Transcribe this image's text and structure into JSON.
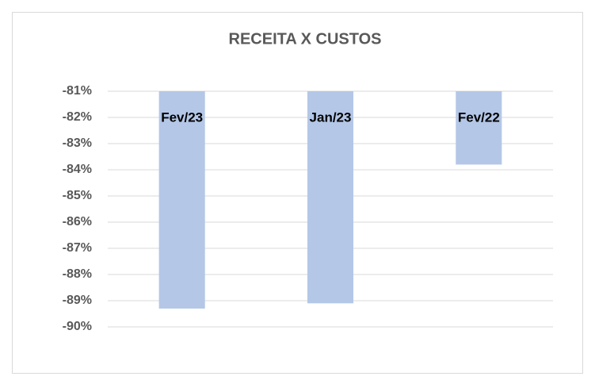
{
  "chart_data": {
    "type": "bar",
    "title": "RECEITA X CUSTOS",
    "categories": [
      "Fev/23",
      "Jan/23",
      "Fev/22"
    ],
    "values": [
      -89.3,
      -89.1,
      -83.8
    ],
    "color": "#b4c7e7",
    "ylim": [
      -90,
      -81
    ],
    "yticks": [
      {
        "value": -81,
        "label": "-81%"
      },
      {
        "value": -82,
        "label": "-82%"
      },
      {
        "value": -83,
        "label": "-83%"
      },
      {
        "value": -84,
        "label": "-84%"
      },
      {
        "value": -85,
        "label": "-85%"
      },
      {
        "value": -86,
        "label": "-86%"
      },
      {
        "value": -87,
        "label": "-87%"
      },
      {
        "value": -88,
        "label": "-88%"
      },
      {
        "value": -89,
        "label": "-89%"
      },
      {
        "value": -90,
        "label": "-90%"
      }
    ],
    "grid": true
  }
}
